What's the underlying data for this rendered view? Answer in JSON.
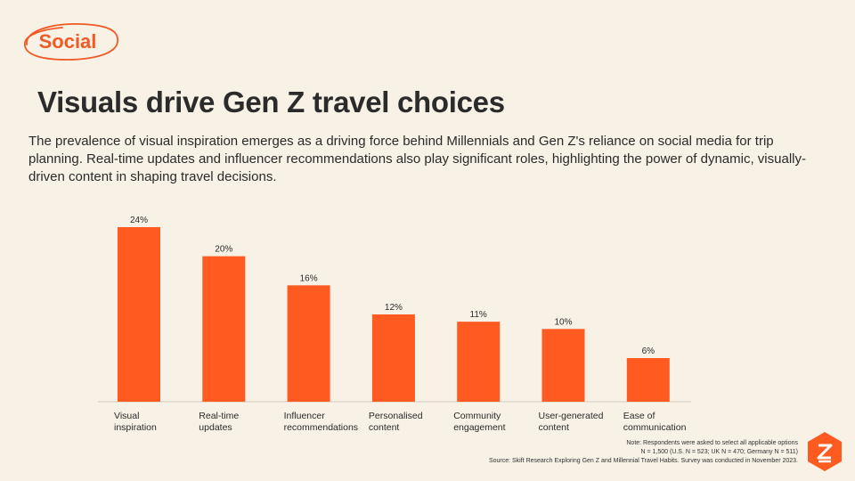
{
  "tag": {
    "label": "Social"
  },
  "header": {
    "title": "Visuals drive Gen Z travel choices",
    "subtitle": "The prevalence of visual inspiration emerges as a driving force behind Millennials and Gen Z's reliance on social media for trip planning. Real-time updates and influencer recommendations also play significant roles, highlighting the power of dynamic, visually-driven content in shaping travel decisions."
  },
  "chart_data": {
    "type": "bar",
    "title": "",
    "xlabel": "",
    "ylabel": "",
    "categories": [
      [
        "Visual",
        "inspiration"
      ],
      [
        "Real-time",
        "updates"
      ],
      [
        "Influencer",
        "recommendations"
      ],
      [
        "Personalised",
        "content"
      ],
      [
        "Community",
        "engagement"
      ],
      [
        "User-generated",
        "content"
      ],
      [
        "Ease of",
        "communication"
      ]
    ],
    "values": [
      24,
      20,
      16,
      12,
      11,
      10,
      6
    ],
    "value_labels": [
      "24%",
      "20%",
      "16%",
      "12%",
      "11%",
      "10%",
      "6%"
    ],
    "ylim": [
      0,
      24
    ],
    "grid": false,
    "bar_color": "#ff5a1f"
  },
  "footer": {
    "note_line1": "Note: Respondents were asked to select all applicable options",
    "note_line2": "N = 1,500 (U.S. N = 523; UK N = 470; Germany N = 511)",
    "source": "Source: Skift Research Exploring Gen Z and Millennial Travel Habits. Survey was conducted in November 2023."
  },
  "colors": {
    "accent": "#f15a24",
    "background": "#f7f1e6",
    "text": "#2b2b2b"
  },
  "logo": {
    "icon": "brand-logo-icon"
  }
}
